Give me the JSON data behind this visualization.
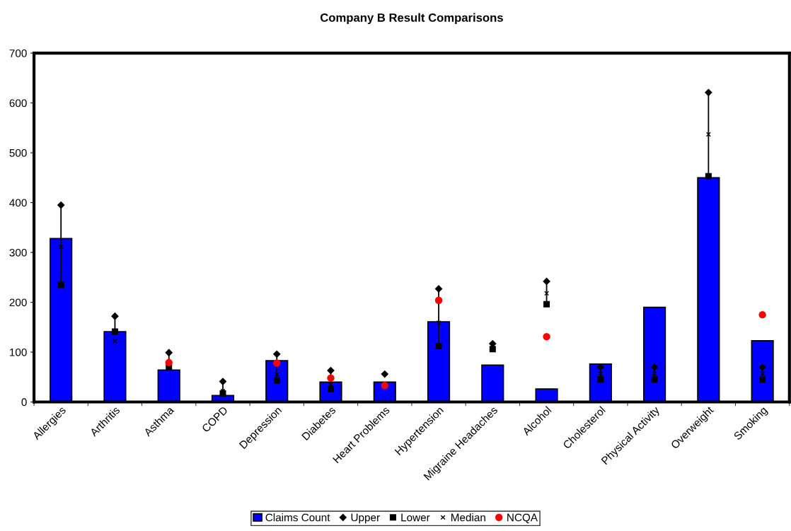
{
  "chart_data": {
    "type": "bar",
    "title": "Company B Result Comparisons",
    "categories": [
      "Allergies",
      "Arthritis",
      "Asthma",
      "COPD",
      "Depression",
      "Diabetes",
      "Heart Problems",
      "Hypertension",
      "Migraine Headaches",
      "Alcohol",
      "Cholesterol",
      "Physical Activity",
      "Overweight",
      "Smoking"
    ],
    "series": [
      {
        "name": "Claims Count",
        "color": "#0000ff",
        "values": [
          328,
          141,
          64,
          13,
          83,
          40,
          40,
          161,
          74,
          26,
          76,
          190,
          450,
          123
        ]
      },
      {
        "name": "Upper",
        "type": "scatter",
        "marker": "diamond",
        "color": "#000000",
        "values": [
          395,
          172,
          99,
          41,
          96,
          63,
          56,
          227,
          117,
          242,
          70,
          70,
          621,
          70
        ]
      },
      {
        "name": "Lower",
        "type": "scatter",
        "marker": "square",
        "color": "#000000",
        "values": [
          235,
          141,
          70,
          17,
          43,
          26,
          null,
          112,
          106,
          196,
          45,
          45,
          453,
          45
        ]
      },
      {
        "name": "Median",
        "type": "scatter",
        "marker": "cross",
        "color": "#000000",
        "values": [
          311,
          122,
          null,
          22,
          55,
          35,
          null,
          159,
          null,
          218,
          57,
          57,
          537,
          57
        ]
      },
      {
        "name": "NCQA",
        "type": "scatter",
        "marker": "circle",
        "color": "#ff0000",
        "values": [
          null,
          null,
          79,
          null,
          78,
          48,
          33,
          204,
          null,
          131,
          null,
          null,
          null,
          175
        ]
      }
    ],
    "ylim": [
      0,
      700
    ],
    "yticks": [
      0,
      100,
      200,
      300,
      400,
      500,
      600,
      700
    ],
    "grid": false,
    "legend": "bottom"
  }
}
